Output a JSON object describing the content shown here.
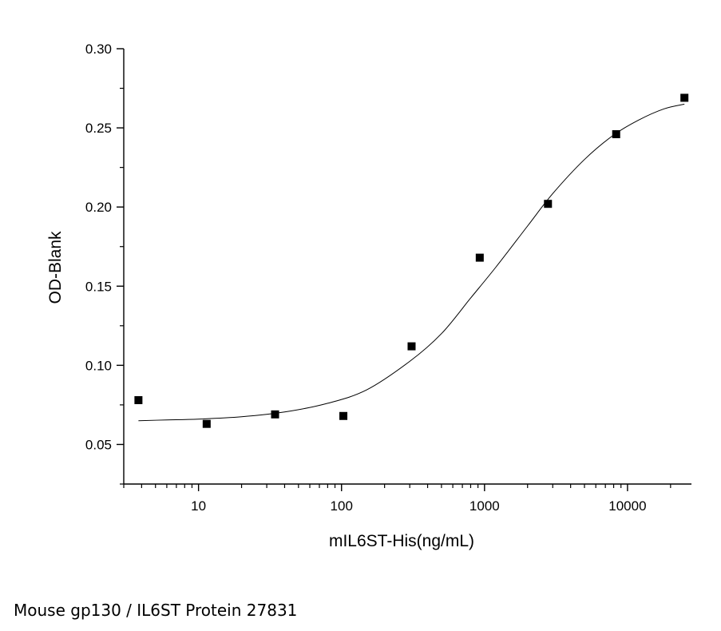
{
  "caption": "Mouse gp130 / IL6ST Protein 27831",
  "chart_data": {
    "type": "scatter",
    "title": "",
    "xlabel": "mIL6ST-His(ng/mL)",
    "ylabel": "OD-Blank",
    "x_scale": "log",
    "xlim": [
      3.0,
      28000
    ],
    "ylim": [
      0.025,
      0.3
    ],
    "x_ticks": [
      10,
      100,
      1000,
      10000
    ],
    "x_tick_labels": [
      "10",
      "100",
      "1000",
      "10000"
    ],
    "y_ticks": [
      0.05,
      0.1,
      0.15,
      0.2,
      0.25,
      0.3
    ],
    "y_tick_labels": [
      "0.05",
      "0.10",
      "0.15",
      "0.20",
      "0.25",
      "0.30"
    ],
    "grid": false,
    "series": [
      {
        "marker": "square",
        "color": "#000000",
        "x": [
          3.8,
          11.4,
          34.3,
          103,
          309,
          926,
          2778,
          8333,
          25000
        ],
        "y": [
          0.078,
          0.063,
          0.069,
          0.068,
          0.112,
          0.168,
          0.202,
          0.246,
          0.269
        ]
      }
    ],
    "fit_curve": {
      "type": "4PL",
      "color": "#000000",
      "x": [
        3.8,
        6,
        10,
        20,
        40,
        80,
        150,
        300,
        500,
        800,
        1200,
        2000,
        3000,
        5000,
        8000,
        12000,
        18000,
        25000
      ],
      "y": [
        0.065,
        0.0655,
        0.066,
        0.0675,
        0.0705,
        0.076,
        0.0845,
        0.1025,
        0.12,
        0.1425,
        0.162,
        0.188,
        0.2085,
        0.23,
        0.2455,
        0.255,
        0.262,
        0.265
      ]
    }
  }
}
